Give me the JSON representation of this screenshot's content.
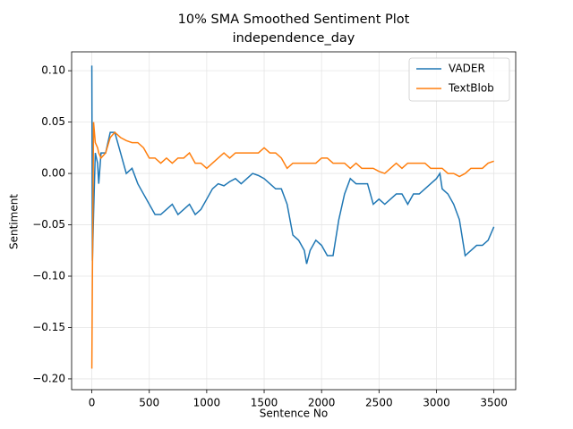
{
  "chart_data": {
    "type": "line",
    "title": "10% SMA Smoothed Sentiment Plot",
    "subtitle": "independence_day",
    "x_label": "Sentence No",
    "y_label": "Sentiment",
    "x": [
      0,
      5,
      15,
      30,
      50,
      60,
      80,
      120,
      160,
      200,
      250,
      300,
      350,
      400,
      450,
      500,
      550,
      600,
      650,
      700,
      750,
      800,
      850,
      900,
      950,
      1000,
      1050,
      1100,
      1150,
      1200,
      1250,
      1300,
      1350,
      1400,
      1450,
      1500,
      1550,
      1600,
      1650,
      1700,
      1750,
      1800,
      1850,
      1870,
      1900,
      1950,
      2000,
      2050,
      2100,
      2150,
      2200,
      2250,
      2300,
      2350,
      2400,
      2450,
      2500,
      2550,
      2600,
      2650,
      2700,
      2750,
      2800,
      2850,
      2900,
      2950,
      3000,
      3030,
      3050,
      3100,
      3150,
      3200,
      3250,
      3300,
      3350,
      3400,
      3450,
      3500
    ],
    "series": [
      {
        "name": "VADER",
        "color": "#1f77b4",
        "values": [
          0.105,
          -0.085,
          -0.04,
          0.02,
          0.01,
          -0.01,
          0.02,
          0.02,
          0.04,
          0.04,
          0.02,
          0.0,
          0.005,
          -0.01,
          -0.02,
          -0.03,
          -0.04,
          -0.04,
          -0.035,
          -0.03,
          -0.04,
          -0.035,
          -0.03,
          -0.04,
          -0.035,
          -0.025,
          -0.015,
          -0.01,
          -0.012,
          -0.008,
          -0.005,
          -0.01,
          -0.005,
          0.0,
          -0.002,
          -0.005,
          -0.01,
          -0.015,
          -0.015,
          -0.03,
          -0.06,
          -0.065,
          -0.075,
          -0.088,
          -0.075,
          -0.065,
          -0.07,
          -0.08,
          -0.08,
          -0.045,
          -0.02,
          -0.005,
          -0.01,
          -0.01,
          -0.01,
          -0.03,
          -0.025,
          -0.03,
          -0.025,
          -0.02,
          -0.02,
          -0.03,
          -0.02,
          -0.02,
          -0.015,
          -0.01,
          -0.005,
          0.0,
          -0.015,
          -0.02,
          -0.03,
          -0.045,
          -0.08,
          -0.075,
          -0.07,
          -0.07,
          -0.065,
          -0.052
        ]
      },
      {
        "name": "TextBlob",
        "color": "#ff7f0e",
        "values": [
          -0.19,
          -0.1,
          0.05,
          0.03,
          0.025,
          0.02,
          0.015,
          0.02,
          0.035,
          0.04,
          0.035,
          0.032,
          0.03,
          0.03,
          0.025,
          0.015,
          0.015,
          0.01,
          0.015,
          0.01,
          0.015,
          0.015,
          0.02,
          0.01,
          0.01,
          0.005,
          0.01,
          0.015,
          0.02,
          0.015,
          0.02,
          0.02,
          0.02,
          0.02,
          0.02,
          0.025,
          0.02,
          0.02,
          0.015,
          0.005,
          0.01,
          0.01,
          0.01,
          0.01,
          0.01,
          0.01,
          0.015,
          0.015,
          0.01,
          0.01,
          0.01,
          0.005,
          0.01,
          0.005,
          0.005,
          0.005,
          0.002,
          0.0,
          0.005,
          0.01,
          0.005,
          0.01,
          0.01,
          0.01,
          0.01,
          0.005,
          0.005,
          0.005,
          0.005,
          0.0,
          0.0,
          -0.003,
          0.0,
          0.005,
          0.005,
          0.005,
          0.01,
          0.012
        ]
      }
    ],
    "xlim": [
      -176,
      3690
    ],
    "ylim": [
      -0.2105,
      0.1184
    ],
    "xticks": [
      0,
      500,
      1000,
      1500,
      2000,
      2500,
      3000,
      3500
    ],
    "yticks": [
      {
        "value": -0.2,
        "label": "−0.20"
      },
      {
        "value": -0.15,
        "label": "−0.15"
      },
      {
        "value": -0.1,
        "label": "−0.10"
      },
      {
        "value": -0.05,
        "label": "−0.05"
      },
      {
        "value": 0,
        "label": "0.00"
      },
      {
        "value": 0.05,
        "label": "0.05"
      },
      {
        "value": 0.1,
        "label": "0.10"
      }
    ],
    "grid": true,
    "legend": "upper right"
  }
}
